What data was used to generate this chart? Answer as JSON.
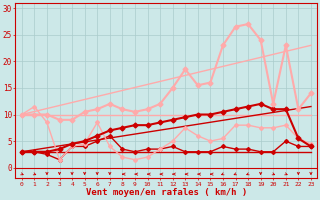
{
  "xlabel": "Vent moyen/en rafales ( km/h )",
  "bg_color": "#cce8e8",
  "grid_color": "#aacccc",
  "x_ticks": [
    0,
    1,
    2,
    3,
    4,
    5,
    6,
    7,
    8,
    9,
    10,
    11,
    12,
    13,
    14,
    15,
    16,
    17,
    18,
    19,
    20,
    21,
    22,
    23
  ],
  "yticks": [
    0,
    5,
    10,
    15,
    20,
    25,
    30
  ],
  "ylim": [
    -2,
    31
  ],
  "xlim": [
    -0.5,
    23.5
  ],
  "series": [
    {
      "x": [
        0,
        1,
        2,
        3,
        4,
        5,
        6,
        7,
        8,
        9,
        10,
        11,
        12,
        13,
        14,
        15,
        16,
        17,
        18,
        19,
        20,
        21,
        22,
        23
      ],
      "y": [
        3,
        3,
        3,
        3,
        3,
        3,
        3,
        3,
        3,
        3,
        3,
        3,
        3,
        3,
        3,
        3,
        3,
        3,
        3,
        3,
        3,
        3,
        3,
        3
      ],
      "color": "#cc0000",
      "lw": 1.0,
      "marker": null
    },
    {
      "x": [
        0,
        1,
        2,
        3,
        4,
        5,
        6,
        7,
        8,
        9,
        10,
        11,
        12,
        13,
        14,
        15,
        16,
        17,
        18,
        19,
        20,
        21,
        22,
        23
      ],
      "y": [
        10,
        10,
        10,
        10,
        10,
        10,
        10,
        10,
        10,
        10,
        10,
        10,
        10,
        10,
        10,
        10,
        10,
        10,
        10,
        10,
        10,
        10,
        10,
        10
      ],
      "color": "#ffaaaa",
      "lw": 1.0,
      "marker": null
    },
    {
      "x": [
        0,
        23
      ],
      "y": [
        3,
        11.5
      ],
      "color": "#cc0000",
      "lw": 1.0,
      "marker": null
    },
    {
      "x": [
        0,
        23
      ],
      "y": [
        10,
        23
      ],
      "color": "#ffaaaa",
      "lw": 1.0,
      "marker": null
    },
    {
      "x": [
        0,
        1,
        2,
        3,
        4,
        5,
        6,
        7,
        8,
        9,
        10,
        11,
        12,
        13,
        14,
        15,
        16,
        17,
        18,
        19,
        20,
        21,
        22,
        23
      ],
      "y": [
        3,
        3,
        2.5,
        1.5,
        4,
        4,
        5,
        6,
        3.5,
        3,
        3.5,
        3.5,
        4,
        3,
        3,
        3,
        4,
        3.5,
        3.5,
        3,
        3,
        5,
        4,
        4
      ],
      "color": "#cc0000",
      "lw": 1.0,
      "marker": "D",
      "ms": 2
    },
    {
      "x": [
        0,
        1,
        2,
        3,
        4,
        5,
        6,
        7,
        8,
        9,
        10,
        11,
        12,
        13,
        14,
        15,
        16,
        17,
        18,
        19,
        20,
        21,
        22,
        23
      ],
      "y": [
        10,
        11.5,
        8.5,
        1.5,
        4,
        4.5,
        8.5,
        4,
        2,
        1.5,
        2,
        3.5,
        5,
        7.5,
        6,
        5,
        5.5,
        8,
        8,
        7.5,
        7.5,
        8,
        5.5,
        4.5
      ],
      "color": "#ffaaaa",
      "lw": 1.0,
      "marker": "D",
      "ms": 2
    },
    {
      "x": [
        0,
        1,
        2,
        3,
        4,
        5,
        6,
        7,
        8,
        9,
        10,
        11,
        12,
        13,
        14,
        15,
        16,
        17,
        18,
        19,
        20,
        21,
        22,
        23
      ],
      "y": [
        3,
        3,
        3,
        3.5,
        4.5,
        5,
        6,
        7,
        7.5,
        8,
        8,
        8.5,
        9,
        9.5,
        10,
        10,
        10.5,
        11,
        11.5,
        12,
        11,
        11,
        5.5,
        4
      ],
      "color": "#cc0000",
      "lw": 1.5,
      "marker": "D",
      "ms": 2.5
    },
    {
      "x": [
        0,
        1,
        2,
        3,
        4,
        5,
        6,
        7,
        8,
        9,
        10,
        11,
        12,
        13,
        14,
        15,
        16,
        17,
        18,
        19,
        20,
        21,
        22,
        23
      ],
      "y": [
        10,
        10,
        10,
        9,
        9,
        10.5,
        11,
        12,
        11,
        10.5,
        11,
        12,
        15,
        18.5,
        15.5,
        16,
        23,
        26.5,
        27,
        24,
        12,
        23,
        11,
        14
      ],
      "color": "#ffaaaa",
      "lw": 1.5,
      "marker": "D",
      "ms": 2.5
    }
  ],
  "wind_arrows": {
    "x": [
      0,
      1,
      2,
      3,
      4,
      5,
      6,
      7,
      8,
      9,
      10,
      11,
      12,
      13,
      14,
      15,
      16,
      17,
      18,
      19,
      20,
      21,
      22,
      23
    ],
    "angles_deg": [
      45,
      45,
      0,
      0,
      0,
      0,
      0,
      0,
      270,
      270,
      270,
      270,
      270,
      270,
      270,
      270,
      315,
      315,
      315,
      0,
      45,
      45,
      0,
      0
    ]
  }
}
